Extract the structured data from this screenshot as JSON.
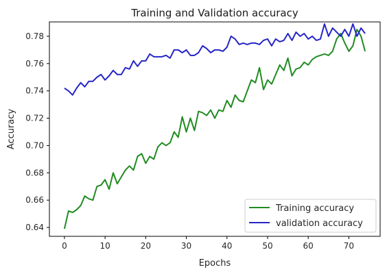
{
  "chart_data": {
    "type": "line",
    "title": "Training and Validation accuracy",
    "xlabel": "Epochs",
    "ylabel": "Accuracy",
    "xlim": [
      -3.7,
      77.7
    ],
    "ylim": [
      0.6335,
      0.7905
    ],
    "xticks": [
      0,
      10,
      20,
      30,
      40,
      50,
      60,
      70
    ],
    "xtick_labels": [
      "0",
      "10",
      "20",
      "30",
      "40",
      "50",
      "60",
      "70"
    ],
    "yticks": [
      0.64,
      0.66,
      0.68,
      0.7,
      0.72,
      0.74,
      0.76,
      0.78
    ],
    "ytick_labels": [
      "0.64",
      "0.66",
      "0.68",
      "0.70",
      "0.72",
      "0.74",
      "0.76",
      "0.78"
    ],
    "grid": false,
    "legend_position": "lower-right",
    "x": [
      0,
      1,
      2,
      3,
      4,
      5,
      6,
      7,
      8,
      9,
      10,
      11,
      12,
      13,
      14,
      15,
      16,
      17,
      18,
      19,
      20,
      21,
      22,
      23,
      24,
      25,
      26,
      27,
      28,
      29,
      30,
      31,
      32,
      33,
      34,
      35,
      36,
      37,
      38,
      39,
      40,
      41,
      42,
      43,
      44,
      45,
      46,
      47,
      48,
      49,
      50,
      51,
      52,
      53,
      54,
      55,
      56,
      57,
      58,
      59,
      60,
      61,
      62,
      63,
      64,
      65,
      66,
      67,
      68,
      69,
      70,
      71,
      72,
      73,
      74
    ],
    "series": [
      {
        "name": "Training accuracy",
        "color": "#1f8b1f",
        "values": [
          0.639,
          0.652,
          0.651,
          0.653,
          0.656,
          0.663,
          0.661,
          0.66,
          0.67,
          0.671,
          0.675,
          0.668,
          0.68,
          0.672,
          0.677,
          0.682,
          0.685,
          0.682,
          0.692,
          0.694,
          0.687,
          0.692,
          0.69,
          0.699,
          0.702,
          0.7,
          0.702,
          0.71,
          0.706,
          0.721,
          0.71,
          0.72,
          0.711,
          0.725,
          0.724,
          0.722,
          0.726,
          0.72,
          0.726,
          0.725,
          0.733,
          0.728,
          0.737,
          0.733,
          0.732,
          0.74,
          0.748,
          0.746,
          0.757,
          0.741,
          0.748,
          0.745,
          0.752,
          0.759,
          0.755,
          0.764,
          0.751,
          0.756,
          0.757,
          0.761,
          0.759,
          0.763,
          0.765,
          0.766,
          0.767,
          0.766,
          0.769,
          0.778,
          0.782,
          0.775,
          0.769,
          0.773,
          0.785,
          0.78,
          0.769
        ]
      },
      {
        "name": "validation accuracy",
        "color": "#2424c8",
        "values": [
          0.742,
          0.74,
          0.737,
          0.742,
          0.746,
          0.743,
          0.747,
          0.747,
          0.75,
          0.752,
          0.748,
          0.751,
          0.755,
          0.752,
          0.752,
          0.757,
          0.756,
          0.762,
          0.758,
          0.762,
          0.762,
          0.767,
          0.765,
          0.765,
          0.765,
          0.766,
          0.764,
          0.77,
          0.77,
          0.768,
          0.77,
          0.766,
          0.766,
          0.768,
          0.773,
          0.771,
          0.768,
          0.77,
          0.77,
          0.769,
          0.772,
          0.78,
          0.778,
          0.774,
          0.775,
          0.774,
          0.775,
          0.775,
          0.774,
          0.777,
          0.778,
          0.773,
          0.778,
          0.776,
          0.777,
          0.782,
          0.777,
          0.783,
          0.78,
          0.782,
          0.778,
          0.78,
          0.777,
          0.778,
          0.789,
          0.78,
          0.786,
          0.783,
          0.78,
          0.785,
          0.78,
          0.789,
          0.78,
          0.786,
          0.782
        ]
      }
    ]
  }
}
